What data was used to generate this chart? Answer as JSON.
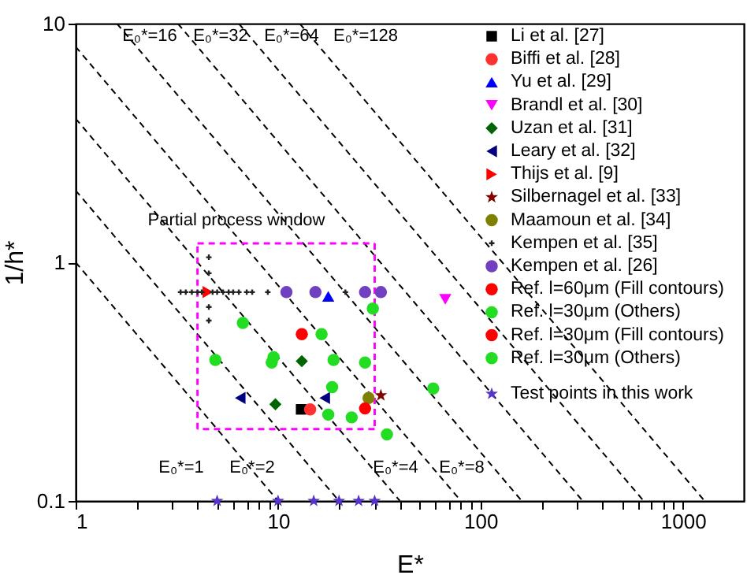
{
  "chart_data": {
    "type": "scatter",
    "xlabel": "E*",
    "ylabel": "1/h*",
    "log": "xy",
    "grid": false,
    "legend": "top right",
    "xlim": [
      1,
      2000
    ],
    "ylim": [
      0.1,
      10
    ],
    "xticks": [
      1,
      {
        "value": 2,
        "label": null
      },
      {
        "value": 3,
        "label": null
      },
      {
        "value": 4,
        "label": null
      },
      {
        "value": 5,
        "label": null
      },
      {
        "value": 6,
        "label": null
      },
      {
        "value": 7,
        "label": null
      },
      {
        "value": 8,
        "label": null
      },
      {
        "value": 9,
        "label": null
      },
      10,
      {
        "value": 20,
        "label": null
      },
      {
        "value": 30,
        "label": null
      },
      {
        "value": 40,
        "label": null
      },
      {
        "value": 50,
        "label": null
      },
      {
        "value": 60,
        "label": null
      },
      {
        "value": 70,
        "label": null
      },
      {
        "value": 80,
        "label": null
      },
      {
        "value": 90,
        "label": null
      },
      100,
      {
        "value": 200,
        "label": null
      },
      {
        "value": 300,
        "label": null
      },
      {
        "value": 400,
        "label": null
      },
      {
        "value": 500,
        "label": null
      },
      {
        "value": 600,
        "label": null
      },
      {
        "value": 700,
        "label": null
      },
      {
        "value": 800,
        "label": null
      },
      {
        "value": 900,
        "label": null
      },
      1000
    ],
    "yticks": [
      0.1,
      1,
      10
    ],
    "series": [
      {
        "type": "line",
        "color": "#000000",
        "line_style": "dashed",
        "x": [
          1,
          10
        ],
        "values": [
          1,
          0.1
        ]
      },
      {
        "type": "line",
        "color": "#000000",
        "line_style": "dashed",
        "x": [
          1,
          20
        ],
        "values": [
          2,
          0.1
        ]
      },
      {
        "type": "line",
        "color": "#000000",
        "line_style": "dashed",
        "x": [
          1,
          40
        ],
        "values": [
          4,
          0.1
        ]
      },
      {
        "type": "line",
        "color": "#000000",
        "line_style": "dashed",
        "x": [
          1,
          80
        ],
        "values": [
          8,
          0.1
        ]
      },
      {
        "type": "line",
        "color": "#000000",
        "line_style": "dashed",
        "x": [
          1.6,
          160
        ],
        "values": [
          10,
          0.1
        ]
      },
      {
        "type": "line",
        "color": "#000000",
        "line_style": "dashed",
        "x": [
          3.2,
          320
        ],
        "values": [
          10,
          0.1
        ]
      },
      {
        "type": "line",
        "color": "#000000",
        "line_style": "dashed",
        "x": [
          6.4,
          640
        ],
        "values": [
          10,
          0.1
        ]
      },
      {
        "type": "line",
        "color": "#000000",
        "line_style": "dashed",
        "x": [
          12.8,
          1280
        ],
        "values": [
          10,
          0.1
        ]
      },
      {
        "type": "line",
        "color": "#ff00ff",
        "line_style": "dashed",
        "x": [
          4,
          30
        ],
        "values": [
          1.2,
          1.2
        ]
      },
      {
        "type": "line",
        "color": "#ff00ff",
        "line_style": "dashed",
        "x": [
          30,
          30
        ],
        "values": [
          1.2,
          0.2
        ]
      },
      {
        "type": "line",
        "color": "#ff00ff",
        "line_style": "dashed",
        "x": [
          30,
          4
        ],
        "values": [
          0.2,
          0.2
        ]
      },
      {
        "type": "line",
        "color": "#ff00ff",
        "line_style": "dashed",
        "x": [
          4,
          4
        ],
        "values": [
          0.2,
          1.2
        ]
      },
      {
        "name": "Li et al. [27]",
        "color": "#000000",
        "marker": "square",
        "x": [
          13.0
        ],
        "values": [
          0.242
        ]
      },
      {
        "name": "Biffi et al. [28]",
        "color": "#ff3030",
        "marker": "circle",
        "x": [
          14.4
        ],
        "values": [
          0.242
        ]
      },
      {
        "name": "Yu et al. [29]",
        "color": "#0000ff",
        "marker": "triangle",
        "x": [
          17.7
        ],
        "values": [
          0.72
        ]
      },
      {
        "name": "Brandl et al. [30]",
        "color": "#ff00ff",
        "marker": "triangle-down",
        "x": [
          67
        ],
        "values": [
          0.7
        ]
      },
      {
        "name": "Uzan et al. [31]",
        "color": "#006400",
        "marker": "diamond",
        "x": [
          13.1,
          9.7
        ],
        "values": [
          0.385,
          0.254
        ]
      },
      {
        "name": "Leary et al. [32]",
        "color": "#000080",
        "marker": "triangle-left",
        "x": [
          6.5,
          17.0
        ],
        "values": [
          0.27,
          0.27
        ]
      },
      {
        "name": "Thijs et al. [9]",
        "color": "#ff0000",
        "marker": "triangle-right",
        "x": [
          4.5
        ],
        "values": [
          0.75
        ]
      },
      {
        "name": "Silbernagel et al. [33]",
        "color": "#800000",
        "marker": "star",
        "x": [
          32.2
        ],
        "values": [
          0.277
        ]
      },
      {
        "name": "Maamoun et al. [34]",
        "color": "#808000",
        "marker": "circle",
        "x": [
          28.0
        ],
        "values": [
          0.27
        ]
      },
      {
        "name": "Kempen et al. [35]",
        "color": "#222222",
        "marker": "cross",
        "x": [
          3.3,
          3.5,
          3.75,
          4.0,
          4.2,
          4.75,
          5.0,
          5.35,
          5.7,
          6.0,
          6.4,
          7.0,
          7.45,
          8.9,
          21.5,
          4.55,
          4.55,
          4.55,
          4.55
        ],
        "values": [
          0.75,
          0.75,
          0.75,
          0.75,
          0.75,
          0.75,
          0.75,
          0.75,
          0.75,
          0.75,
          0.75,
          0.75,
          0.75,
          0.75,
          0.75,
          1.05,
          0.9,
          0.65,
          0.57
        ]
      },
      {
        "name": "Kempen et al. [26]",
        "color": "#7040c0",
        "marker": "circle",
        "x": [
          11,
          15.3,
          26.9,
          32.2
        ],
        "values": [
          0.75,
          0.75,
          0.75,
          0.75
        ]
      },
      {
        "name": "Ref. l=60μm (Fill contours)",
        "color": "#ff0000",
        "marker": "circle",
        "x": [
          13.1
        ],
        "values": [
          0.5
        ]
      },
      {
        "name": "Ref. l=30μm (Others)",
        "color": "#22dd22",
        "marker": "circle",
        "x": [
          6.7,
          16.4,
          4.9,
          9.3,
          9.5,
          18.8,
          17.7
        ],
        "values": [
          0.557,
          0.5,
          0.39,
          0.38,
          0.4,
          0.39,
          0.23
        ]
      },
      {
        "name": "Ref. l=30μm (Fill contours)",
        "color": "#ff0000",
        "marker": "circle",
        "x": [
          26.9
        ],
        "values": [
          0.244
        ]
      },
      {
        "name": "Ref. l=30μm (Others)",
        "color": "#22dd22",
        "marker": "circle",
        "x": [
          29.4,
          26.9,
          18.5,
          23.1,
          34.5,
          58.4
        ],
        "values": [
          0.64,
          0.38,
          0.3,
          0.224,
          0.19,
          0.296
        ]
      },
      {
        "name": "Test points in this work",
        "color": "#5533cc",
        "marker": "star",
        "x": [
          5,
          10,
          15,
          20,
          25,
          30
        ],
        "values": [
          0.1,
          0.1,
          0.1,
          0.1,
          0.1,
          0.1
        ]
      }
    ],
    "annotations": [
      "E₀*=16",
      "E₀*=32",
      "E₀*=64",
      "E₀*=128",
      "E₀*=1",
      "E₀*=2",
      "E₀*=4",
      "E₀*=8",
      "Partial process window"
    ]
  }
}
